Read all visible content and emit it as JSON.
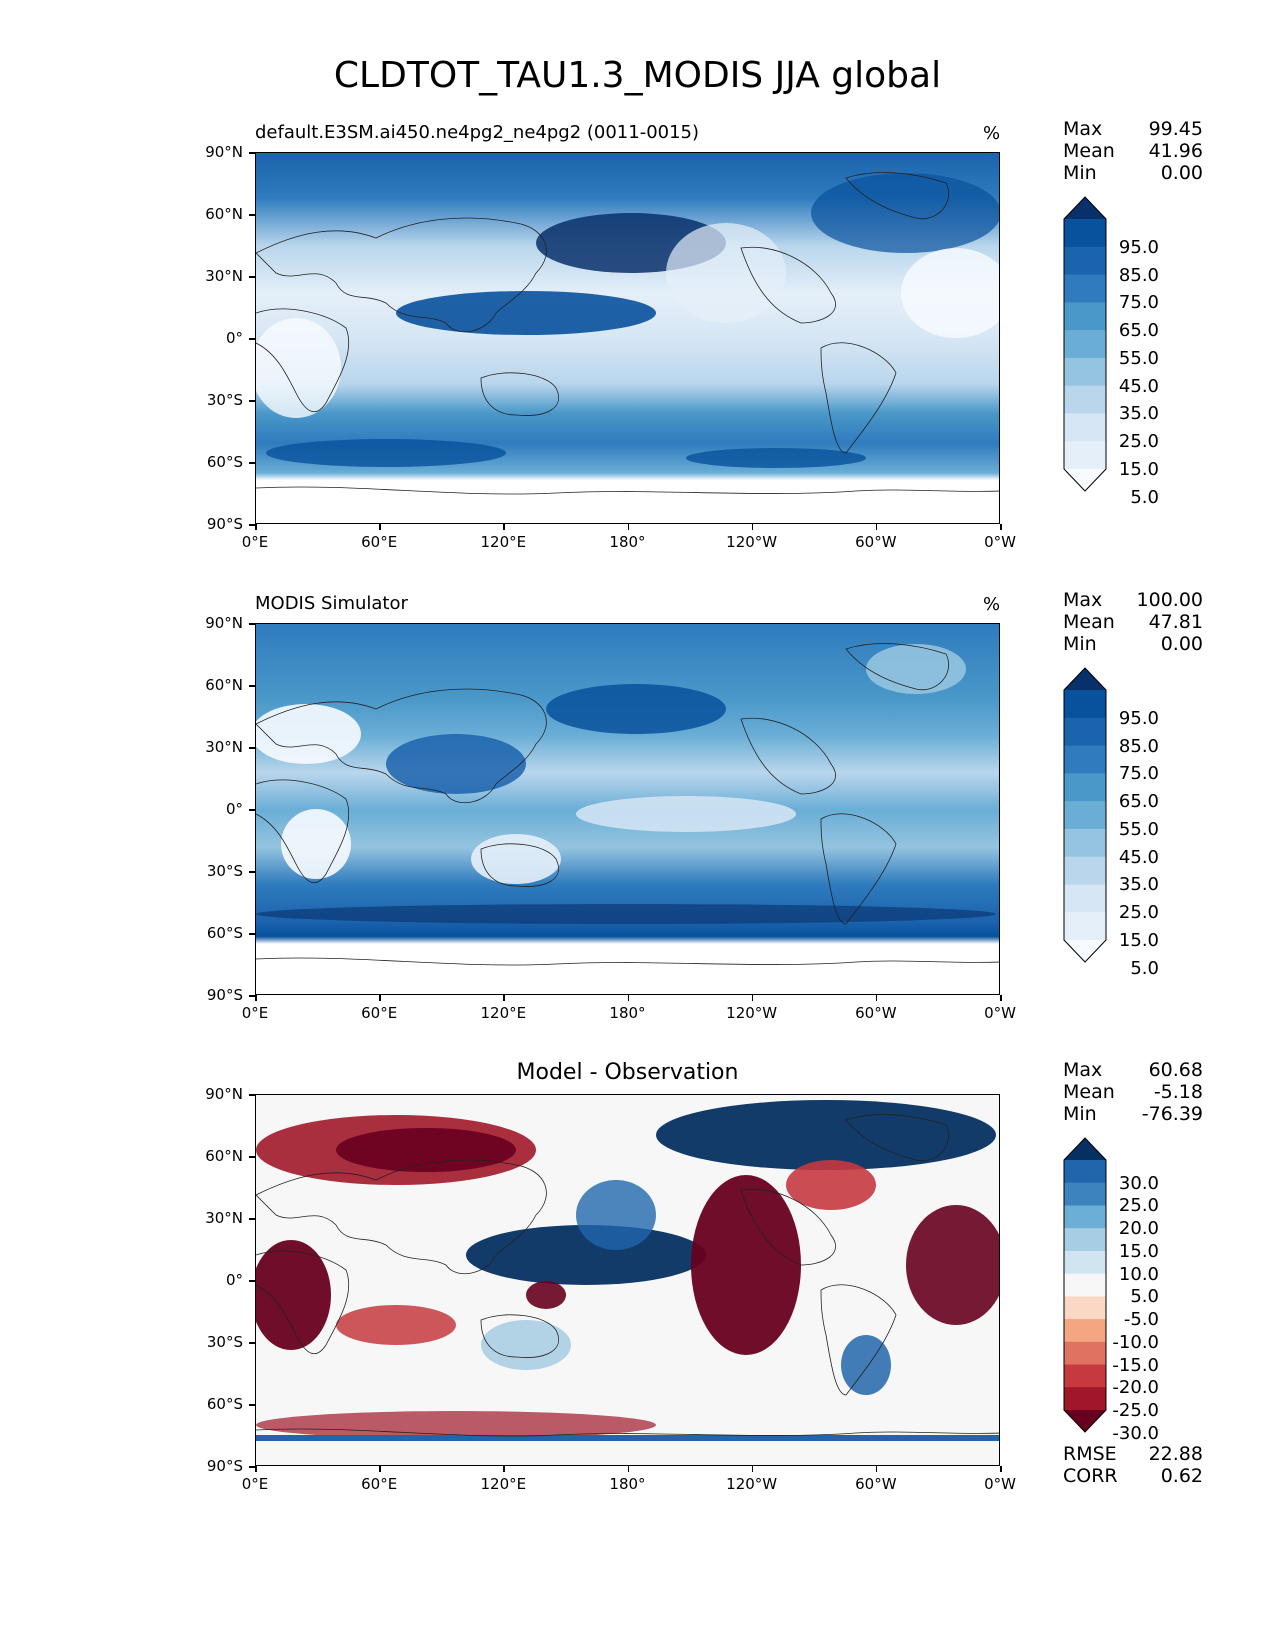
{
  "figure": {
    "title": "CLDTOT_TAU1.3_MODIS JJA global"
  },
  "panels": [
    {
      "title_left": "default.E3SM.ai450.ne4pg2_ne4pg2 (0011-0015)",
      "title_center": "",
      "units": "%",
      "stats": {
        "max_label": "Max",
        "max": "99.45",
        "mean_label": "Mean",
        "mean": "41.96",
        "min_label": "Min",
        "min": "0.00"
      },
      "colorbar": {
        "ticks": [
          "95.0",
          "85.0",
          "75.0",
          "65.0",
          "55.0",
          "45.0",
          "35.0",
          "25.0",
          "15.0",
          "5.0"
        ],
        "colors": [
          "#08306b",
          "#08519c",
          "#1b63ad",
          "#2f7bbe",
          "#4a98c9",
          "#6aaed6",
          "#94c4df",
          "#b9d6ec",
          "#d6e6f4",
          "#e5eff9",
          "#f7fbff"
        ]
      }
    },
    {
      "title_left": "MODIS Simulator",
      "title_center": "",
      "units": "%",
      "stats": {
        "max_label": "Max",
        "max": "100.00",
        "mean_label": "Mean",
        "mean": "47.81",
        "min_label": "Min",
        "min": "0.00"
      },
      "colorbar": {
        "ticks": [
          "95.0",
          "85.0",
          "75.0",
          "65.0",
          "55.0",
          "45.0",
          "35.0",
          "25.0",
          "15.0",
          "5.0"
        ],
        "colors": [
          "#08306b",
          "#08519c",
          "#1b63ad",
          "#2f7bbe",
          "#4a98c9",
          "#6aaed6",
          "#94c4df",
          "#b9d6ec",
          "#d6e6f4",
          "#e5eff9",
          "#f7fbff"
        ]
      }
    },
    {
      "title_left": "",
      "title_center": "Model - Observation",
      "units": "",
      "stats": {
        "max_label": "Max",
        "max": "60.68",
        "mean_label": "Mean",
        "mean": "-5.18",
        "min_label": "Min",
        "min": "-76.39"
      },
      "colorbar": {
        "ticks": [
          "30.0",
          "25.0",
          "20.0",
          "15.0",
          "10.0",
          "5.0",
          "-5.0",
          "-10.0",
          "-15.0",
          "-20.0",
          "-25.0",
          "-30.0"
        ],
        "colors": [
          "#053061",
          "#2166ac",
          "#3d83be",
          "#6baed6",
          "#a6cde3",
          "#d1e5f0",
          "#f7f7f7",
          "#fbd8c5",
          "#f4a582",
          "#df7260",
          "#c5393f",
          "#a01729",
          "#67001f"
        ]
      },
      "rmse_label": "RMSE",
      "rmse": "22.88",
      "corr_label": "CORR",
      "corr": "0.62"
    }
  ],
  "axes": {
    "yticks": [
      "90°N",
      "60°N",
      "30°N",
      "0°",
      "30°S",
      "60°S",
      "90°S"
    ],
    "xticks": [
      "0°E",
      "60°E",
      "120°E",
      "180°",
      "120°W",
      "60°W",
      "0°W"
    ]
  },
  "chart_data": [
    {
      "type": "heatmap",
      "title": "default.E3SM.ai450.ne4pg2_ne4pg2 (0011-0015)",
      "projection": "cylindrical, lon 0-360, lat -90 to 90",
      "units": "%",
      "levels": [
        0,
        5,
        15,
        25,
        35,
        45,
        55,
        65,
        75,
        85,
        95,
        100
      ],
      "colormap": "Blues",
      "stats": {
        "max": 99.45,
        "mean": 41.96,
        "min": 0.0
      },
      "lat_bands": [
        {
          "lat": [
            60,
            90
          ],
          "value": 75
        },
        {
          "lat": [
            30,
            60
          ],
          "value": 55
        },
        {
          "lat": [
            10,
            30
          ],
          "value": 30
        },
        {
          "lat": [
            -10,
            10
          ],
          "value": 35
        },
        {
          "lat": [
            -30,
            -10
          ],
          "value": 25
        },
        {
          "lat": [
            -70,
            -30
          ],
          "value": 70
        },
        {
          "lat": [
            -90,
            -70
          ],
          "value": 0
        }
      ]
    },
    {
      "type": "heatmap",
      "title": "MODIS Simulator",
      "projection": "cylindrical, lon 0-360, lat -90 to 90",
      "units": "%",
      "levels": [
        0,
        5,
        15,
        25,
        35,
        45,
        55,
        65,
        75,
        85,
        95,
        100
      ],
      "colormap": "Blues",
      "stats": {
        "max": 100.0,
        "mean": 47.81,
        "min": 0.0
      },
      "lat_bands": [
        {
          "lat": [
            60,
            90
          ],
          "value": 65
        },
        {
          "lat": [
            30,
            60
          ],
          "value": 60
        },
        {
          "lat": [
            10,
            30
          ],
          "value": 40
        },
        {
          "lat": [
            -10,
            10
          ],
          "value": 55
        },
        {
          "lat": [
            -30,
            -10
          ],
          "value": 35
        },
        {
          "lat": [
            -70,
            -30
          ],
          "value": 85
        },
        {
          "lat": [
            -90,
            -70
          ],
          "value": 0
        }
      ]
    },
    {
      "type": "heatmap",
      "title": "Model - Observation",
      "projection": "cylindrical, lon 0-360, lat -90 to 90",
      "levels": [
        -30,
        -25,
        -20,
        -15,
        -10,
        -5,
        5,
        10,
        15,
        20,
        25,
        30
      ],
      "colormap": "RdBu_r",
      "stats": {
        "max": 60.68,
        "mean": -5.18,
        "min": -76.39,
        "rmse": 22.88,
        "corr": 0.62
      }
    }
  ]
}
